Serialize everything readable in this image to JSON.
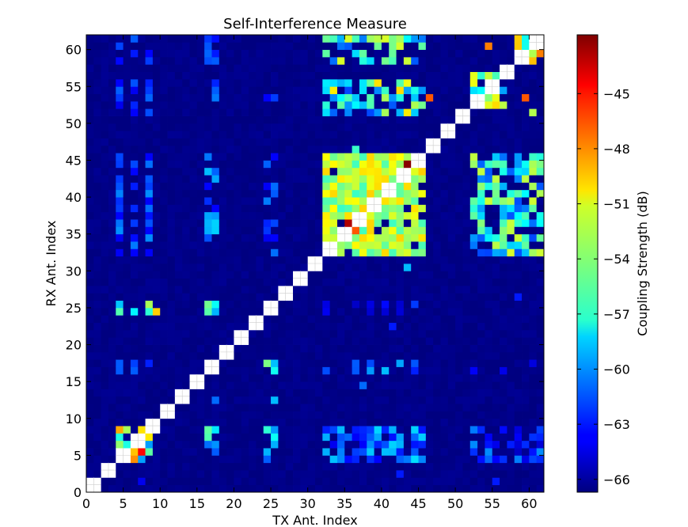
{
  "chart_data": {
    "type": "heatmap",
    "title": "Self-Interference Measure",
    "xlabel": "TX Ant. Index",
    "ylabel": "RX Ant. Index",
    "colorbar_label": "Coupling Strength (dB)",
    "colormap": "jet",
    "grid_size": 62,
    "xlim": [
      0,
      62
    ],
    "ylim": [
      0,
      62
    ],
    "value_range": [
      -66.7,
      -41.8
    ],
    "background_value": -66.5,
    "diagonal_missing": true,
    "missing_color": "#ffffff",
    "x_ticks": [
      0,
      5,
      10,
      15,
      20,
      25,
      30,
      35,
      40,
      45,
      50,
      55,
      60
    ],
    "y_ticks": [
      0,
      5,
      10,
      15,
      20,
      25,
      30,
      35,
      40,
      45,
      50,
      55,
      60
    ],
    "colorbar_ticks": [
      -45,
      -48,
      -51,
      -54,
      -57,
      -60,
      -63,
      -66
    ],
    "blocks": [
      {
        "tx": [
          32,
          46
        ],
        "rx": [
          32,
          46
        ],
        "level": [
          -56,
          -50
        ],
        "stripe": 1,
        "fill": 0.9
      },
      {
        "tx": [
          4,
          9
        ],
        "rx": [
          4,
          9
        ],
        "level": [
          -60,
          -48
        ],
        "stripe": 1,
        "fill": 0.85
      },
      {
        "tx": [
          52,
          57
        ],
        "rx": [
          52,
          57
        ],
        "level": [
          -60,
          -50
        ],
        "stripe": 1,
        "fill": 0.8
      },
      {
        "tx": [
          58,
          62
        ],
        "rx": [
          58,
          62
        ],
        "level": [
          -58,
          -46
        ],
        "stripe": 1,
        "fill": 0.8
      },
      {
        "tx": [
          32,
          46
        ],
        "rx": [
          51,
          56
        ],
        "level": [
          -62,
          -50
        ],
        "stripe": 1,
        "fill": 0.7
      },
      {
        "tx": [
          32,
          46
        ],
        "rx": [
          58,
          62
        ],
        "level": [
          -62,
          -52
        ],
        "stripe": 1,
        "fill": 0.6
      },
      {
        "tx": [
          52,
          62
        ],
        "rx": [
          32,
          46
        ],
        "level": [
          -62,
          -52
        ],
        "stripe": 1,
        "fill": 0.7
      },
      {
        "tx": [
          4,
          10
        ],
        "rx": [
          32,
          46
        ],
        "level": [
          -64,
          -60
        ],
        "stripe": 2,
        "fill": 0.8
      },
      {
        "tx": [
          4,
          10
        ],
        "rx": [
          51,
          56
        ],
        "level": [
          -64,
          -61
        ],
        "stripe": 2,
        "fill": 0.7
      },
      {
        "tx": [
          4,
          10
        ],
        "rx": [
          58,
          62
        ],
        "level": [
          -64,
          -61
        ],
        "stripe": 2,
        "fill": 0.5
      },
      {
        "tx": [
          32,
          46
        ],
        "rx": [
          4,
          9
        ],
        "level": [
          -64,
          -58
        ],
        "stripe": 1,
        "fill": 0.7
      },
      {
        "tx": [
          52,
          62
        ],
        "rx": [
          4,
          9
        ],
        "level": [
          -65,
          -60
        ],
        "stripe": 1,
        "fill": 0.6
      },
      {
        "tx": [
          4,
          10
        ],
        "rx": [
          24,
          26
        ],
        "level": [
          -62,
          -52
        ],
        "stripe": 2,
        "fill": 0.7
      },
      {
        "tx": [
          4,
          10
        ],
        "rx": [
          16,
          18
        ],
        "level": [
          -64,
          -60
        ],
        "stripe": 2,
        "fill": 0.7
      },
      {
        "tx": [
          32,
          46
        ],
        "rx": [
          16,
          18
        ],
        "level": [
          -64,
          -59
        ],
        "stripe": 2,
        "fill": 0.6
      },
      {
        "tx": [
          32,
          46
        ],
        "rx": [
          24,
          26
        ],
        "level": [
          -65,
          -62
        ],
        "stripe": 2,
        "fill": 0.5
      },
      {
        "tx": [
          16,
          18
        ],
        "rx": [
          4,
          9
        ],
        "level": [
          -62,
          -55
        ],
        "stripe": 1,
        "fill": 0.6
      },
      {
        "tx": [
          24,
          26
        ],
        "rx": [
          4,
          9
        ],
        "level": [
          -62,
          -54
        ],
        "stripe": 1,
        "fill": 0.6
      },
      {
        "tx": [
          16,
          18
        ],
        "rx": [
          32,
          46
        ],
        "level": [
          -64,
          -58
        ],
        "stripe": 1,
        "fill": 0.6
      },
      {
        "tx": [
          24,
          26
        ],
        "rx": [
          32,
          46
        ],
        "level": [
          -64,
          -60
        ],
        "stripe": 1,
        "fill": 0.5
      },
      {
        "tx": [
          16,
          18
        ],
        "rx": [
          51,
          56
        ],
        "level": [
          -64,
          -60
        ],
        "stripe": 1,
        "fill": 0.5
      },
      {
        "tx": [
          24,
          26
        ],
        "rx": [
          51,
          56
        ],
        "level": [
          -64,
          -62
        ],
        "stripe": 1,
        "fill": 0.4
      },
      {
        "tx": [
          16,
          18
        ],
        "rx": [
          24,
          26
        ],
        "level": [
          -60,
          -54
        ],
        "stripe": 1,
        "fill": 0.8
      },
      {
        "tx": [
          24,
          26
        ],
        "rx": [
          16,
          18
        ],
        "level": [
          -60,
          -54
        ],
        "stripe": 1,
        "fill": 0.8
      },
      {
        "tx": [
          16,
          18
        ],
        "rx": [
          58,
          62
        ],
        "level": [
          -64,
          -60
        ],
        "stripe": 1,
        "fill": 0.5
      },
      {
        "tx": [
          52,
          62
        ],
        "rx": [
          16,
          18
        ],
        "level": [
          -65,
          -63
        ],
        "stripe": 2,
        "fill": 0.5
      }
    ],
    "points": [
      {
        "tx": 43,
        "rx": 44,
        "value": -42
      },
      {
        "tx": 40,
        "rx": 40,
        "value": -43
      },
      {
        "tx": 35,
        "rx": 36,
        "value": -43
      },
      {
        "tx": 6,
        "rx": 6,
        "value": -42
      },
      {
        "tx": 7,
        "rx": 5,
        "value": -45
      },
      {
        "tx": 62,
        "rx": 53,
        "value": -43
      },
      {
        "tx": 59,
        "rx": 53,
        "value": -47
      },
      {
        "tx": 46,
        "rx": 53,
        "value": -47
      },
      {
        "tx": 9,
        "rx": 24,
        "value": -50
      },
      {
        "tx": 36,
        "rx": 35,
        "value": -47
      },
      {
        "tx": 41,
        "rx": 41,
        "value": -45
      },
      {
        "tx": 54,
        "rx": 60,
        "value": -48
      },
      {
        "tx": 59,
        "rx": 62,
        "value": -50
      },
      {
        "tx": 60,
        "rx": 51,
        "value": -53
      },
      {
        "tx": 36,
        "rx": 46,
        "value": -56
      },
      {
        "tx": 43,
        "rx": 30,
        "value": -59
      },
      {
        "tx": 37,
        "rx": 14,
        "value": -61
      },
      {
        "tx": 17,
        "rx": 12,
        "value": -61
      },
      {
        "tx": 25,
        "rx": 12,
        "value": -59
      },
      {
        "tx": 42,
        "rx": 2,
        "value": -63
      },
      {
        "tx": 41,
        "rx": 22,
        "value": -63
      },
      {
        "tx": 55,
        "rx": 1,
        "value": -63
      },
      {
        "tx": 58,
        "rx": 26,
        "value": -63
      },
      {
        "tx": 7,
        "rx": 1,
        "value": -64
      }
    ]
  }
}
